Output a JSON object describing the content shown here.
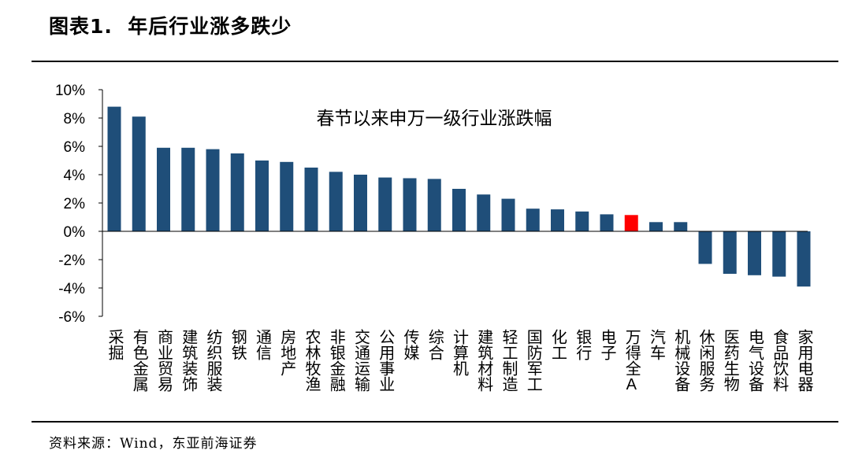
{
  "figure": {
    "title": "图表1.  年后行业涨多跌少",
    "source": "资料来源：Wind，东亚前海证券"
  },
  "colors": {
    "bar": "#1F4E79",
    "highlight": "#FF0000",
    "axis": "#000000"
  },
  "chart_data": {
    "type": "bar",
    "title": "春节以来申万一级行业涨跌幅",
    "xlabel": "",
    "ylabel": "",
    "ylim": [
      -6,
      10
    ],
    "yticks": [
      "10%",
      "8%",
      "6%",
      "4%",
      "2%",
      "0%",
      "-2%",
      "-4%",
      "-6%"
    ],
    "grid": false,
    "legend": "none",
    "highlight_category": "万得全A",
    "categories": [
      "采掘",
      "有色金属",
      "商业贸易",
      "建筑装饰",
      "纺织服装",
      "钢铁",
      "通信",
      "房地产",
      "农林牧渔",
      "非银金融",
      "交通运输",
      "公用事业",
      "传媒",
      "综合",
      "计算机",
      "建筑材料",
      "轻工制造",
      "国防军工",
      "化工",
      "银行",
      "电子",
      "万得全A",
      "汽车",
      "机械设备",
      "休闲服务",
      "医药生物",
      "电气设备",
      "食品饮料",
      "家用电器"
    ],
    "values": [
      8.8,
      8.1,
      5.9,
      5.9,
      5.8,
      5.5,
      5.0,
      4.9,
      4.5,
      4.2,
      4.0,
      3.8,
      3.75,
      3.7,
      3.0,
      2.6,
      2.3,
      1.6,
      1.55,
      1.4,
      1.2,
      1.15,
      0.65,
      0.65,
      -2.3,
      -3.0,
      -3.1,
      -3.2,
      -3.9
    ]
  }
}
